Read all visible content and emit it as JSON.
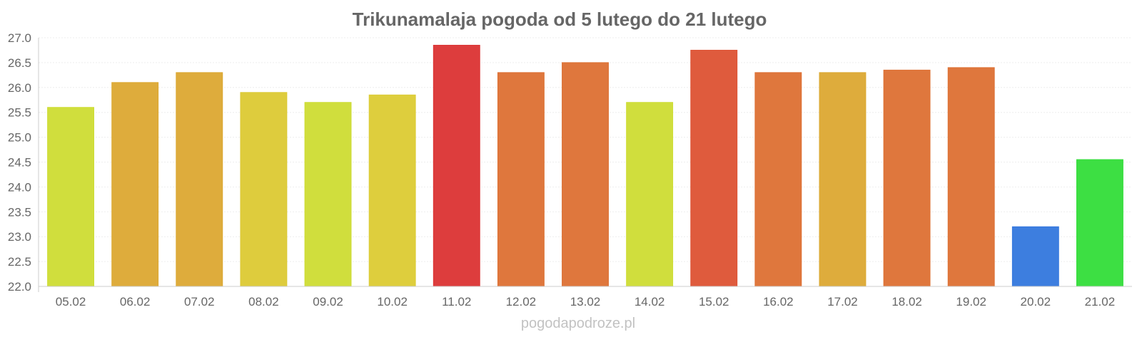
{
  "chart_data": {
    "type": "bar",
    "title": "Trikunamalaja pogoda od 5 lutego do 21 lutego",
    "xlabel": "",
    "ylabel": "",
    "ylim": [
      22.0,
      27.0
    ],
    "yticks": [
      "22.0",
      "22.5",
      "23.0",
      "23.5",
      "24.0",
      "24.5",
      "25.0",
      "25.5",
      "26.0",
      "26.5",
      "27.0"
    ],
    "categories": [
      "05.02",
      "06.02",
      "07.02",
      "08.02",
      "09.02",
      "10.02",
      "11.02",
      "12.02",
      "13.02",
      "14.02",
      "15.02",
      "16.02",
      "17.02",
      "18.02",
      "19.02",
      "20.02",
      "21.02"
    ],
    "values": [
      25.6,
      26.1,
      26.3,
      25.9,
      25.7,
      25.85,
      26.85,
      26.3,
      26.5,
      25.7,
      26.75,
      26.3,
      26.3,
      26.35,
      26.4,
      23.2,
      24.55
    ],
    "colors": [
      "#cddc33",
      "#dca831",
      "#dca831",
      "#dcc933",
      "#cddc33",
      "#dccb33",
      "#db3333",
      "#dd7033",
      "#dd7033",
      "#cddc33",
      "#dd5233",
      "#dd7033",
      "#dca831",
      "#dd7033",
      "#dd7033",
      "#3377dd",
      "#33dd39"
    ],
    "grid": true
  },
  "watermark": "pogodapodroze.pl"
}
